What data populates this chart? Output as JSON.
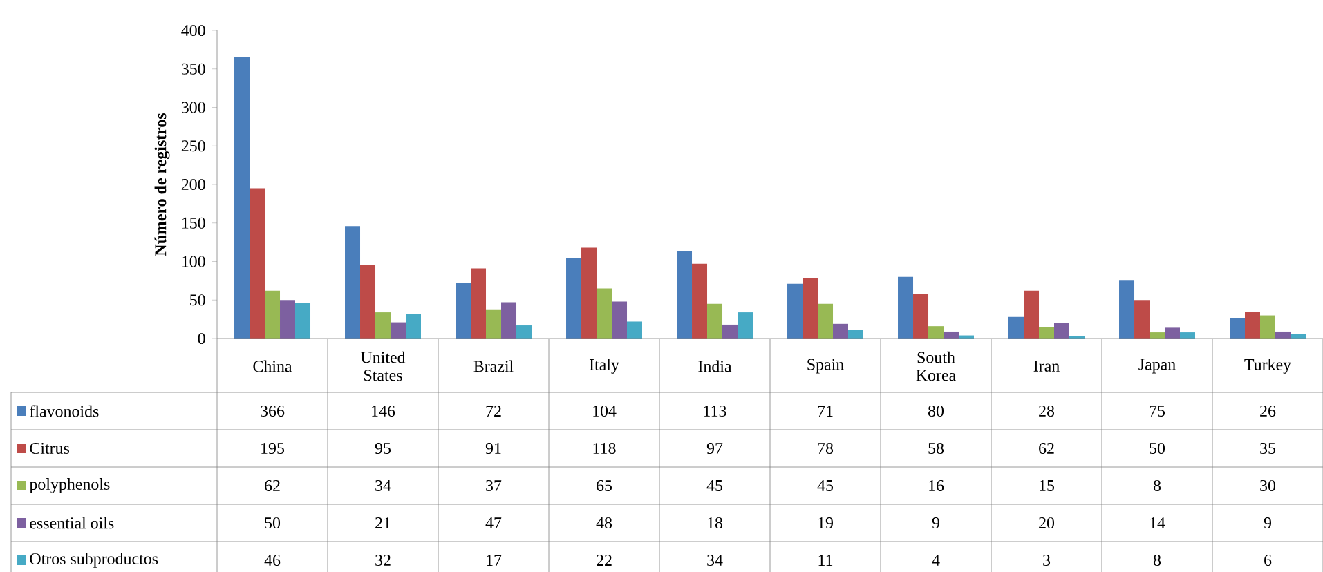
{
  "chart_data": {
    "type": "bar",
    "ylabel": "Número de registros",
    "categories": [
      "China",
      "United States",
      "Brazil",
      "Italy",
      "India",
      "Spain",
      "South Korea",
      "Iran",
      "Japan",
      "Turkey"
    ],
    "series": [
      {
        "name": "flavonoids",
        "color": "#4a7ebb",
        "values": [
          366,
          146,
          72,
          104,
          113,
          71,
          80,
          28,
          75,
          26
        ]
      },
      {
        "name": "Citrus",
        "color": "#be4b48",
        "values": [
          195,
          95,
          91,
          118,
          97,
          78,
          58,
          62,
          50,
          35
        ]
      },
      {
        "name": "polyphenols",
        "color": "#98b954",
        "values": [
          62,
          34,
          37,
          65,
          45,
          45,
          16,
          15,
          8,
          30
        ]
      },
      {
        "name": "essential oils",
        "color": "#7d60a0",
        "values": [
          50,
          21,
          47,
          48,
          18,
          19,
          9,
          20,
          14,
          9
        ]
      },
      {
        "name": "Otros subproductos",
        "color": "#46aac5",
        "values": [
          46,
          32,
          17,
          22,
          34,
          11,
          4,
          3,
          8,
          6
        ]
      }
    ],
    "ylim": [
      0,
      400
    ],
    "yticks": [
      0,
      50,
      100,
      150,
      200,
      250,
      300,
      350,
      400
    ],
    "data_labels": true,
    "legend": "bottom left"
  }
}
